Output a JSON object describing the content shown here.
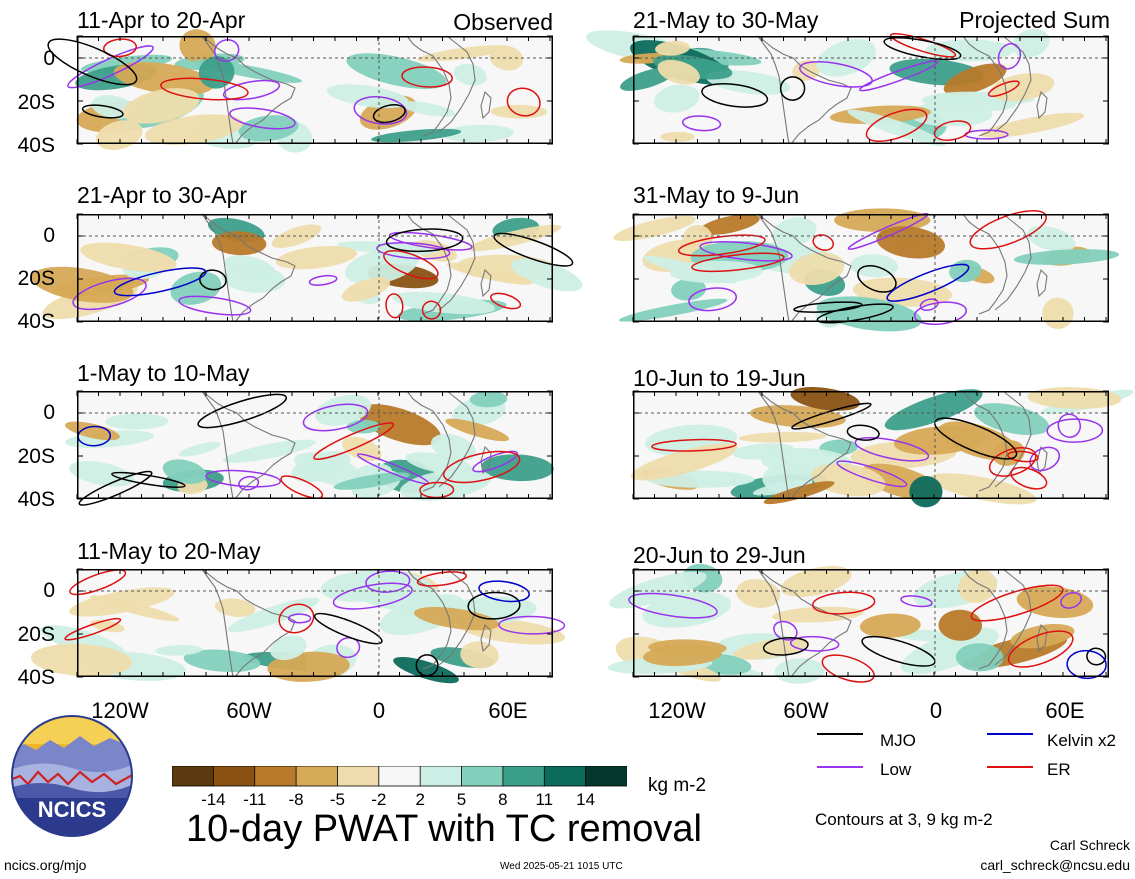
{
  "panels_left": [
    {
      "title": "11-Apr to 20-Apr",
      "side": "Observed"
    },
    {
      "title": "21-Apr to 30-Apr",
      "side": ""
    },
    {
      "title": "1-May to 10-May",
      "side": ""
    },
    {
      "title": "11-May to 20-May",
      "side": ""
    }
  ],
  "panels_right": [
    {
      "title": "21-May to 30-May",
      "side": "Projected Sum"
    },
    {
      "title": "31-May to 9-Jun",
      "side": ""
    },
    {
      "title": "10-Jun to 19-Jun",
      "side": ""
    },
    {
      "title": "20-Jun to 29-Jun",
      "side": ""
    }
  ],
  "lat_labels": [
    "0",
    "20S",
    "40S"
  ],
  "lon_labels": [
    "120W",
    "60W",
    "0",
    "60E"
  ],
  "legend": {
    "mjo": "MJO",
    "kelvin": "Kelvin x2",
    "low": "Low",
    "er": "ER",
    "colors": {
      "mjo": "#000000",
      "kelvin": "#0000cc",
      "low": "#9933ee",
      "er": "#dd1111"
    }
  },
  "colorbar": {
    "ticks": [
      "-14",
      "-11",
      "-8",
      "-5",
      "-2",
      "2",
      "5",
      "8",
      "11",
      "14"
    ],
    "colors": [
      "#5a3a0e",
      "#8a5212",
      "#b87a2a",
      "#d6a956",
      "#eedcac",
      "#f7f7f7",
      "#cdeee4",
      "#83d0bd",
      "#3c9f8a",
      "#0d6b5c",
      "#04382f"
    ],
    "units": "kg m-2"
  },
  "main_title": "10-day PWAT with TC removal",
  "contour_note": "Contours at 3, 9 kg m-2",
  "logo_text": "NCICS",
  "footer": {
    "left": "ncics.org/mjo",
    "center": "Wed 2025-05-21 1015 UTC",
    "author": "Carl Schreck",
    "email": "carl_schreck@ncsu.edu"
  }
}
